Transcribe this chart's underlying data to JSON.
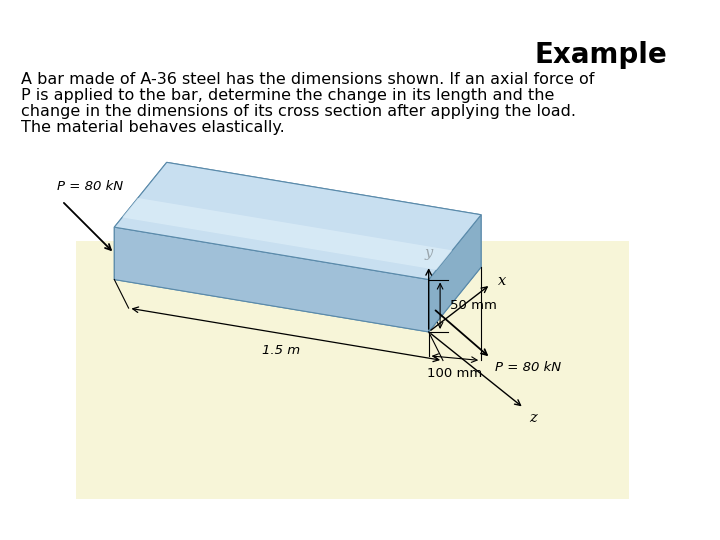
{
  "title": "Example",
  "title_fontsize": 20,
  "body_text_line1": "A bar made of A-36 steel has the dimensions shown. If an axial force of",
  "body_text_line2": "P is applied to the bar, determine the change in its length and the",
  "body_text_line3": "change in the dimensions of its cross section after applying the load.",
  "body_text_line4": "The material behaves elastically.",
  "body_fontsize": 11.5,
  "bg_color": "#ffffff",
  "diagram_bg": "#f7f5d8",
  "label_P_left": "P = 80 kN",
  "label_P_right": "P = 80 kN",
  "label_length": "1.5 m",
  "label_50mm": "50 mm",
  "label_100mm": "100 mm",
  "label_x": "x",
  "label_y": "y",
  "label_z": "z",
  "annotation_fontsize": 9.5,
  "bar_top_color": "#c8dff0",
  "bar_front_color": "#a0c0d8",
  "bar_right_color": "#88afc8",
  "bar_left_color": "#90b8d0",
  "bar_bottom_color": "#78a0b8",
  "bar_highlight_color": "#ddeef8",
  "bar_edge_color": "#5a8aaa"
}
